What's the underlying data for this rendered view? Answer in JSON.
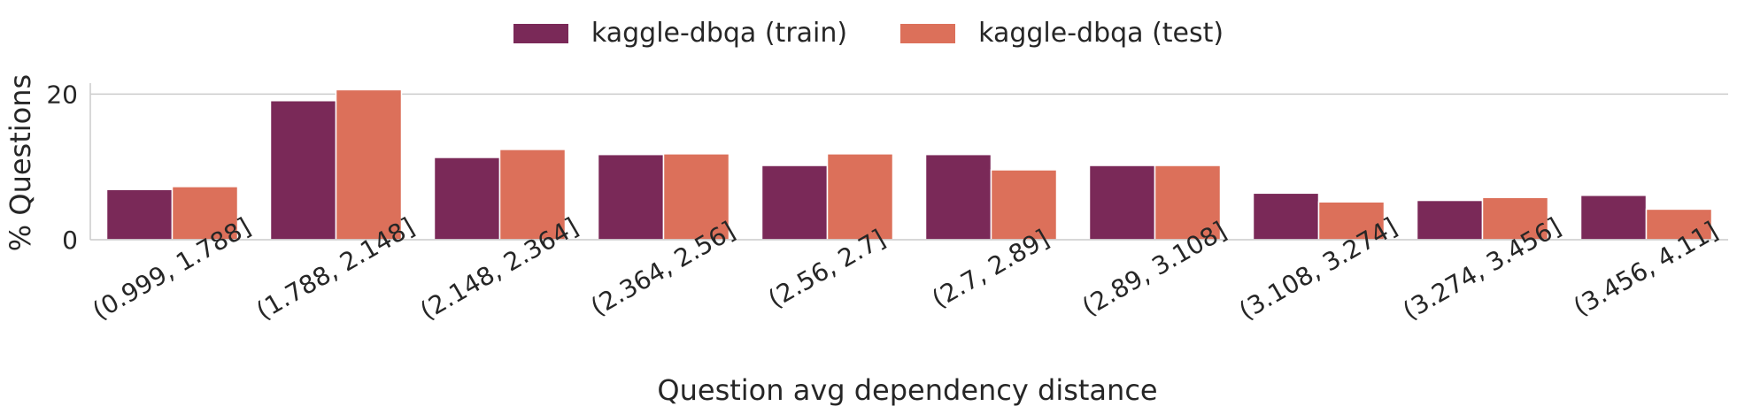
{
  "chart_data": {
    "type": "bar",
    "title": "",
    "xlabel": "Question avg dependency distance",
    "ylabel": "% Questions",
    "ylim": [
      0,
      21.5
    ],
    "yticks": [
      0,
      20
    ],
    "grid": "y-major",
    "legend_position": "top-center",
    "categories": [
      "(0.999, 1.788]",
      "(1.788, 2.148]",
      "(2.148, 2.364]",
      "(2.364, 2.56]",
      "(2.56, 2.7]",
      "(2.7, 2.89]",
      "(2.89, 3.108]",
      "(3.108, 3.274]",
      "(3.274, 3.456]",
      "(3.456, 4.11]"
    ],
    "series": [
      {
        "name": "kaggle-dbqa (train)",
        "color": "#7a2958",
        "values": [
          6.9,
          19.1,
          11.3,
          11.7,
          10.2,
          11.7,
          10.2,
          6.4,
          5.4,
          6.1
        ]
      },
      {
        "name": "kaggle-dbqa (test)",
        "color": "#dc705a",
        "values": [
          7.3,
          20.6,
          12.4,
          11.8,
          11.8,
          9.6,
          10.2,
          5.2,
          5.8,
          4.2
        ]
      }
    ]
  }
}
